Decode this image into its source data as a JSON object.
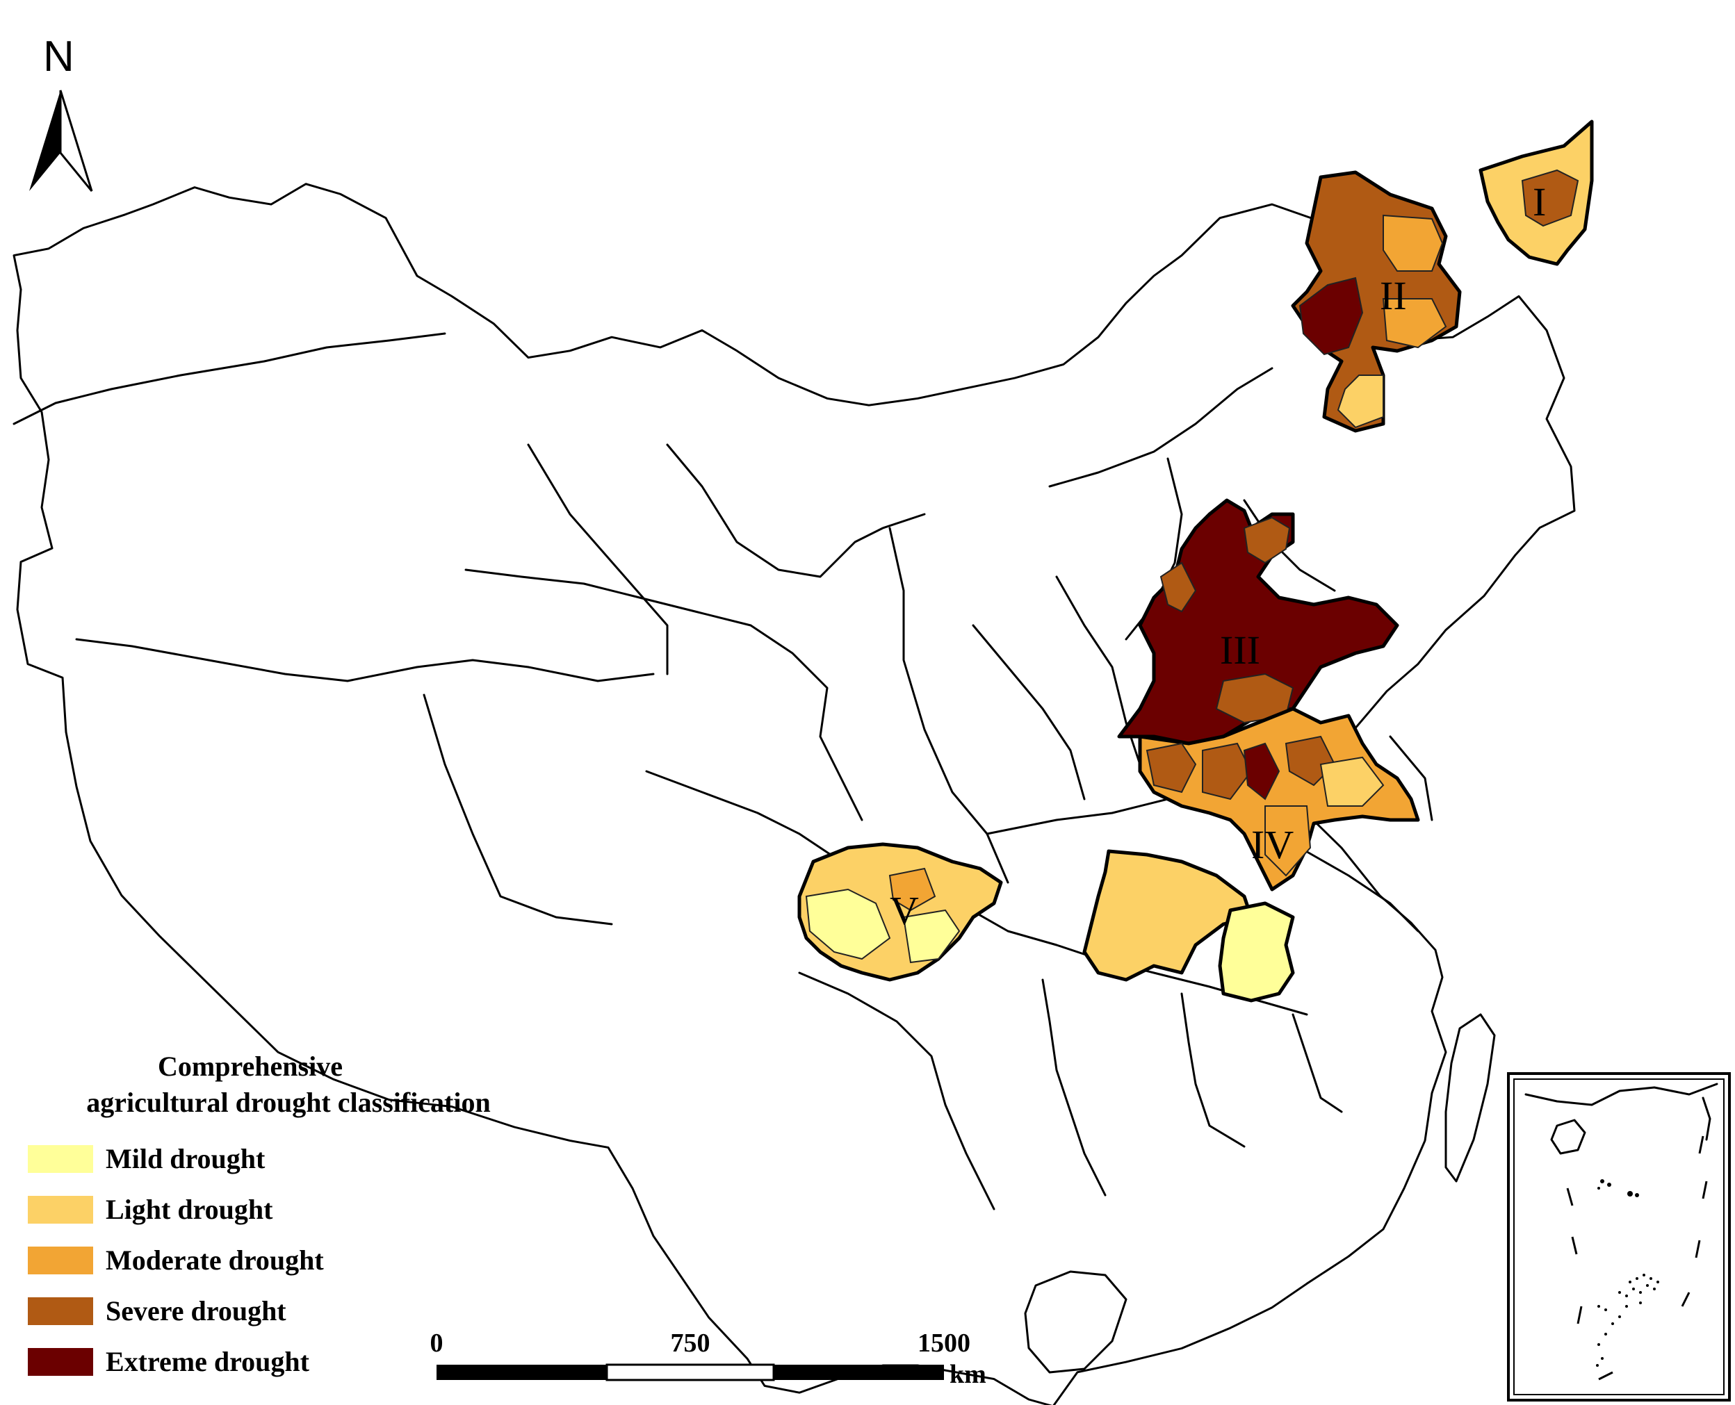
{
  "north_arrow": {
    "letter": "N"
  },
  "legend": {
    "title_line1": "Comprehensive",
    "title_line2": "agricultural drought classification",
    "items": [
      {
        "label": "Mild drought",
        "color": "#ffff99"
      },
      {
        "label": "Light drought",
        "color": "#fcd166"
      },
      {
        "label": "Moderate drought",
        "color": "#f2a534"
      },
      {
        "label": "Severe drought",
        "color": "#b05a14"
      },
      {
        "label": "Extreme drought",
        "color": "#6b0000"
      }
    ]
  },
  "scale_bar": {
    "ticks": [
      "0",
      "750",
      "1500"
    ],
    "unit": "km"
  },
  "zones": [
    {
      "label": "I"
    },
    {
      "label": "II"
    },
    {
      "label": "III"
    },
    {
      "label": "IV"
    },
    {
      "label": "V"
    }
  ]
}
